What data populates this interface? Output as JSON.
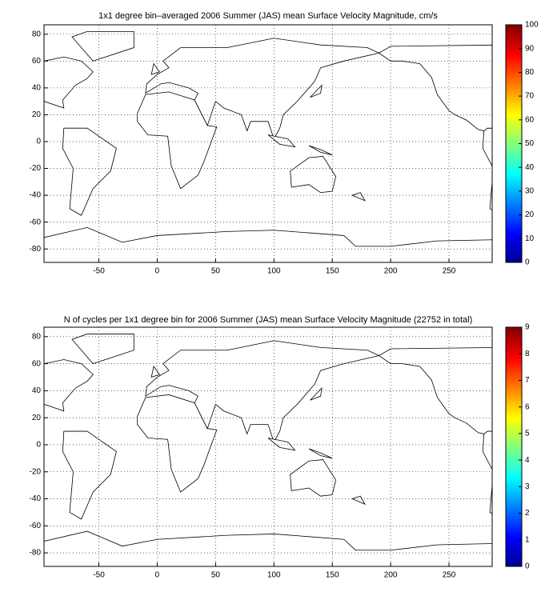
{
  "chart_data": [
    {
      "type": "heatmap",
      "title": "1x1 degree bin–averaged 2006 Summer (JAS) mean Surface Velocity Magnitude, cm/s",
      "xlim": [
        -97,
        287
      ],
      "ylim": [
        -90,
        87
      ],
      "xticks": [
        -50,
        0,
        50,
        100,
        150,
        200,
        250
      ],
      "yticks": [
        -80,
        -60,
        -40,
        -20,
        0,
        20,
        40,
        60,
        80
      ],
      "grid": true,
      "colormap": "jet",
      "clim": [
        0,
        100
      ],
      "cticks": [
        0,
        10,
        20,
        30,
        40,
        50,
        60,
        70,
        80,
        90,
        100
      ]
    },
    {
      "type": "heatmap",
      "title": "N of cycles per 1x1 degree bin for 2006 Summer (JAS) mean Surface Velocity Magnitude (22752 in total)",
      "xlim": [
        -97,
        287
      ],
      "ylim": [
        -90,
        87
      ],
      "xticks": [
        -50,
        0,
        50,
        100,
        150,
        200,
        250
      ],
      "yticks": [
        -80,
        -60,
        -40,
        -20,
        0,
        20,
        40,
        60,
        80
      ],
      "grid": true,
      "colormap": "jet",
      "clim": [
        0,
        9
      ],
      "cticks": [
        0,
        1,
        2,
        3,
        4,
        5,
        6,
        7,
        8,
        9
      ]
    }
  ]
}
